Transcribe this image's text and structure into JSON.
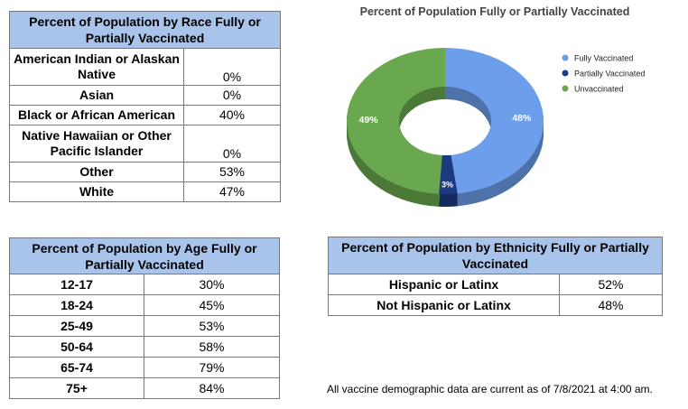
{
  "race_table": {
    "title": "Percent of Population by Race Fully or Partially Vaccinated",
    "rows": [
      {
        "label": "American Indian or Alaskan Native",
        "value": "0%"
      },
      {
        "label": "Asian",
        "value": "0%"
      },
      {
        "label": "Black or African American",
        "value": "40%"
      },
      {
        "label": "Native Hawaiian or Other Pacific Islander",
        "value": "0%"
      },
      {
        "label": "Other",
        "value": "53%"
      },
      {
        "label": "White",
        "value": "47%"
      }
    ]
  },
  "age_table": {
    "title": "Percent of Population by Age Fully or Partially Vaccinated",
    "rows": [
      {
        "label": "12-17",
        "value": "30%"
      },
      {
        "label": "18-24",
        "value": "45%"
      },
      {
        "label": "25-49",
        "value": "53%"
      },
      {
        "label": "50-64",
        "value": "58%"
      },
      {
        "label": "65-74",
        "value": "79%"
      },
      {
        "label": "75+",
        "value": "84%"
      }
    ]
  },
  "ethnicity_table": {
    "title": "Percent of Population by Ethnicity Fully or Partially Vaccinated",
    "rows": [
      {
        "label": "Hispanic or Latinx",
        "value": "52%"
      },
      {
        "label": "Not Hispanic or Latinx",
        "value": "48%"
      }
    ]
  },
  "footnote": "All vaccine demographic data are current as of 7/8/2021 at 4:00 am.",
  "chart_data": {
    "type": "pie",
    "title": "Percent of Population Fully or Partially Vaccinated",
    "donut": true,
    "style_3d": true,
    "legend_position": "right",
    "slices": [
      {
        "name": "Fully Vaccinated",
        "value": 48,
        "label": "48%",
        "color": "#6d9eeb"
      },
      {
        "name": "Partially Vaccinated",
        "value": 3,
        "label": "3%",
        "color": "#1c3a80"
      },
      {
        "name": "Unvaccinated",
        "value": 49,
        "label": "49%",
        "color": "#6aa84f"
      }
    ]
  }
}
